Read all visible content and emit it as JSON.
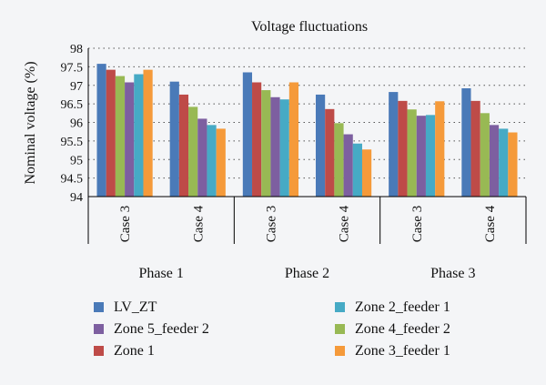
{
  "chart_data": {
    "type": "bar",
    "title": "Voltage fluctuations",
    "ylabel": "Nominal voltage (%)",
    "xlabel": "",
    "ylim": [
      94,
      98
    ],
    "yticks": [
      "94",
      "94.5",
      "95",
      "95.5",
      "96",
      "96.5",
      "97",
      "97.5",
      "98"
    ],
    "grid": "dotted-horizontal",
    "legend_position": "bottom",
    "groups": [
      {
        "label": "Phase 1",
        "categories": [
          "Case 3",
          "Case 4"
        ]
      },
      {
        "label": "Phase 2",
        "categories": [
          "Case 3",
          "Case 4"
        ]
      },
      {
        "label": "Phase 3",
        "categories": [
          "Case 3",
          "Case 4"
        ]
      }
    ],
    "series": [
      {
        "name": "LV_ZT",
        "color": "#4a7ab8",
        "values": [
          97.58,
          97.1,
          97.35,
          96.75,
          96.82,
          96.92
        ]
      },
      {
        "name": "Zone 1",
        "color": "#be4b48",
        "values": [
          97.42,
          96.75,
          97.08,
          96.36,
          96.58,
          96.58
        ]
      },
      {
        "name": "Zone 4_feeder 2",
        "color": "#98b954",
        "values": [
          97.25,
          96.42,
          96.87,
          95.98,
          96.35,
          96.25
        ]
      },
      {
        "name": "Zone 5_feeder 2",
        "color": "#7d5fa0",
        "values": [
          97.08,
          96.1,
          96.68,
          95.68,
          96.18,
          95.93
        ]
      },
      {
        "name": "Zone 2_feeder 1",
        "color": "#46aac5",
        "values": [
          97.3,
          95.93,
          96.62,
          95.43,
          96.2,
          95.83
        ]
      },
      {
        "name": "Zone 3_feeder 1",
        "color": "#f59a3a",
        "values": [
          97.42,
          95.83,
          97.08,
          95.27,
          96.57,
          95.73
        ]
      }
    ],
    "legend_order": [
      "LV_ZT",
      "Zone 2_feeder 1",
      "Zone 5_feeder 2",
      "Zone 4_feeder 2",
      "Zone 1",
      "Zone 3_feeder 1"
    ]
  }
}
